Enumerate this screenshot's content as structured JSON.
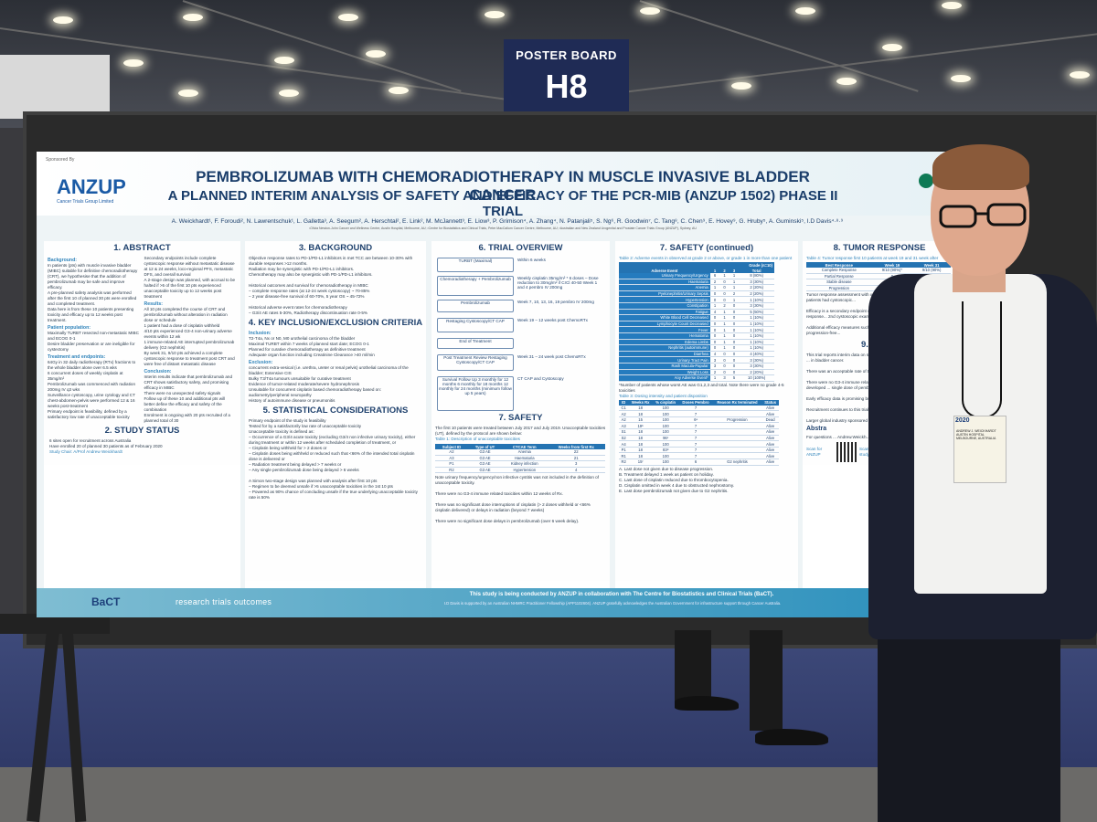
{
  "board": {
    "label": "POSTER BOARD",
    "number": "H8"
  },
  "poster": {
    "sponsor": "Sponsored By",
    "logo": "ANZUP",
    "logo_sub": "Cancer Trials Group Limited",
    "title_line1": "PEMBROLIZUMAB WITH CHEMORADIOTHERAPY IN MUSCLE INVASIVE BLADDER CANCER",
    "title_line2": "A PLANNED INTERIM ANALYSIS OF SAFETY AND EFFICACY OF THE PCR-MIB (ANZUP 1502) PHASE II TRIAL",
    "authors": "A. Weickhardt¹, F. Foroudi², N. Lawrentschuk¹, L. Galletta³, A. Seegum², A. Herschtal², E. Link², M. McJannett³, E. Liow³, P. Grimison⁴, A. Zhang⁴, N. Patanjali⁵, S. Ng⁶, R. Goodwin⁷, C. Tang⁸, C. Chen⁹, E. Hovey⁹, G. Hruby⁵, A. Guminski⁵, I.D Davis⁴·⁸·⁹",
    "affiliations": "¹Olivia Newton-John Cancer and Wellness Centre, Austin Hospital, Melbourne, AU; ²Centre for Biostatistics and Clinical Trials, Peter MacCallum Cancer Centre, Melbourne, AU; ³Australian and New Zealand Urogenital and Prostate Cancer Trials Group (ANZUP), Sydney, AU",
    "sections": {
      "abstract": {
        "heading": "1. ABSTRACT",
        "background_h": "Background:",
        "background": "In patients (pts) with muscle invasive bladder (MIBC) suitable for definitive chemoradiotherapy (CRT), we hypothesise that the addition of pembrolizumab may be safe and improve efficacy.\nA pre-planned safety analysis was performed after the first 10 of planned 30 pts were enrolled and completed treatment.\nData here is from these 10 patients presenting toxicity and efficacy up to 12 weeks post treatment.",
        "population_h": "Patient population:",
        "population": "Maximally TURBT resected non-metastatic MIBC and ECOG 0-1\nDesire bladder preservation or are ineligible for cystectomy",
        "treatment_h": "Treatment and endpoints:",
        "treatment": "64Gy in 32 daily radiotherapy (RTx) fractions to the whole bladder alone over 6.5 wks\n6 concurrent doses of weekly cisplatin at 35mg/m²\nPembrolizumab was commenced with radiation 200mg IV q3 wks\nSurveillance cystoscopy, urine cytology and CT chest-abdomen-pelvis were performed 12 & 16 weeks post-treatment\nPrimary endpoint is feasibility, defined by a satisfactory low rate of unacceptable toxicity",
        "secondary": "Secondary endpoints include complete cystoscopic response without metastatic disease at 12 & 24 weeks, loco-regional PFS, metastatic DFS, and overall survival\nA 2-stage design was planned, with accrual to be halted if >5 of the first 10 pts experienced unacceptable toxicity up to 12 weeks post treatment",
        "results_h": "Results:",
        "results": "All 10 pts completed the course of CRT and pembrolizumab without alteration in radiation dose or schedule\n1 patient had a dose of cisplatin withheld\n4/10 pts experienced G3-4 non-urinary adverse events within 12 wk\n1 immune-related AE interrupted pembrolizumab delivery (G2 nephritis)\nBy week 31, 9/10 pts achieved a complete cystoscopic response to treatment post CRT and were free of distant metastatic disease",
        "conclusion_h": "Conclusion:",
        "conclusion": "Interim results indicate that pembrolizumab and CRT shows satisfactory safety, and promising efficacy in MIBC\nThere were no unexpected safety signals\nFollow up of these 10 and additional pts will better define the efficacy and safety of the combination\nEnrolment is ongoing with 20 pts recruited of a planned total of 30"
      },
      "study_status": {
        "heading": "2. STUDY STATUS",
        "text": "6 sites open for recruitment across Australia\nHave enrolled 20 of planned 30 patients as of February 2020",
        "chair": "Study Chair: A/Prof Andrew Weickhardt"
      },
      "background": {
        "heading": "3. BACKGROUND",
        "text": "Objective response rates to PD-1/PD-L1 inhibitors in met TCC are between 10-30% with durable responses >12 months.\nRadiation may be synergistic with PD-1/PD-L1 inhibitors.\nChemotherapy may also be synergistic with PD-1/PD-L1 inhibitors.\n\nHistorical outcomes and survival for chemoradiotherapy in MIBC\n– complete response rates (at 12-24 week cystoscopy) ~ 70-85%\n– 2 year disease-free survival of 60-70%, 5 year OS ~ 45-72%\n\nHistorical adverse event rates for chemoradiotherapy\n– G3/4 AE rates 5-30%, Radiotherapy discontinuation rate 0-5%"
      },
      "inclusion": {
        "heading": "4. KEY INCLUSION/EXCLUSION CRITERIA",
        "inclusion_h": "Inclusion:",
        "inclusion": "T2-T4a, Nx or N0, M0 urothelial carcinoma of the bladder\nMaximal TURBT within 7 weeks of planned start date; ECOG 0-1\nPlanned for curative chemoradiotherapy as definitive treatment\nAdequate organ function including Creatinine Clearance >40 ml/min",
        "exclusion_h": "Exclusion:",
        "exclusion": "concurrent extra-vesical (i.e. urethra, ureter or renal pelvis) urothelial carcinoma of the bladder; Extensive CIS\nBulky T3/T4a tumours unsuitable for curative treatment\nEvidence of tumor-related moderate/severe hydronephrosis\nUnsuitable for concurrent cisplatin based chemoradiotherapy based on: audiometry/peripheral neuropathy\nHistory of autoimmune disease or pneumonitis"
      },
      "statistics": {
        "heading": "5. STATISTICAL CONSIDERATIONS",
        "text": "Primary endpoint of the study is feasibility\nTested for by a satisfactorily low rate of unacceptable toxicity\nUnacceptable toxicity is defined as:\n– Occurrence of a G3/4 acute toxicity (excluding G3/4 non infective urinary toxicity), either during treatment or within 12 weeks after scheduled completion of treatment, or\n– Cisplatin being withheld for > 2 doses or\n– Cisplatin doses being withheld or reduced such that <66% of the intended total cisplatin dose is delivered or\n– Radiation treatment being delayed > 7 weeks or\n– Any single pembrolizumab dose being delayed > 6 weeks\n\nA Simon two-stage design was planned with analysis after first 10 pts\n– Regimen to be deemed unsafe if >5 unacceptable toxicities in the 1st 10 pts\n– Powered as 90% chance of concluding unsafe if the true underlying unacceptable toxicity rate is 50%"
      },
      "trial_overview": {
        "heading": "6. TRIAL OVERVIEW",
        "steps": [
          {
            "box": "TURBT (Maximal)",
            "note": "Within 6 weeks"
          },
          {
            "box": "Chemoradiotherapy + Pembrolizumab",
            "note": "Weekly cisplatin 35mg/m² * 6 doses – Dose reduction to 30mg/m² if CrCl 40-50 Week 1 and 4 pembro IV 200mg"
          },
          {
            "box": "Pembrolizumab",
            "note": "Week 7, 10, 13, 16, 19 pembro IV 200mg"
          },
          {
            "box": "Restaging Cystoscopy/CT CAP",
            "note": "Week 19 – 12 weeks post ChemoRTx"
          },
          {
            "box": "End of Treatment",
            "note": ""
          },
          {
            "box": "Post Treatment Review Restaging Cystoscopy/CT CAP",
            "note": "Week 31 – 24 week post ChemoRTx"
          },
          {
            "box": "Survival Follow Up 3 monthly for 12 months 6 monthly for 18 months 12 monthly for 24 months (minimum follow up 5 years)",
            "note": "CT CAP and Cystoscopy"
          }
        ]
      },
      "safety": {
        "heading": "7. SAFETY",
        "text": "The first 10 patients were treated between July 2017 and July 2019. Unacceptable toxicities (UT), defined by the protocol are shown below:",
        "table_caption": "Table 1: Description of unacceptable toxicities",
        "columns": [
          "Subject ID",
          "Type of UT",
          "CTCAE Term",
          "Weeks from first Rx"
        ],
        "rows": [
          [
            "A2",
            "G3 AE",
            "Anemia",
            "22"
          ],
          [
            "A3",
            "G3 AE",
            "Haematuria",
            "21"
          ],
          [
            "P1",
            "G3 AE",
            "Kidney infection",
            "3"
          ],
          [
            "R2",
            "G3 AE",
            "Hypertension",
            "4"
          ]
        ],
        "notes": "Note urinary frequency/urgency/non infective cystitis was not included in the definition of unacceptable toxicity.\n\nThere were no G3-4 immune related toxicities within 12 weeks of Rx.\n\nThere was no significant dose interruptions of cisplatin (> 2 doses withheld or <66% cisplatin delivered) or delays in radiation (beyond 7 weeks)\n\nThere were no significant dose delays in pembrolizumab (over 6 week delay)."
      },
      "safety_cont": {
        "heading": "7. SAFETY (continued)",
        "table2_caption": "Table 2: Adverse events in observed at grade 2 or above, or grade 1 in more than one patient",
        "ae_columns": [
          "Adverse Event",
          "1",
          "2",
          "3",
          "Total"
        ],
        "ae_grade_header": "Grade (n=10)",
        "ae_rows": [
          [
            "Urinary Frequency/Urgency",
            "6",
            "1",
            "1",
            "8 (80%)"
          ],
          [
            "Haematuria",
            "2",
            "0",
            "1",
            "3 (30%)"
          ],
          [
            "Anemia",
            "1",
            "0",
            "1",
            "2 (20%)"
          ],
          [
            "Pyelonephritis/Urinary Sepsis",
            "0",
            "0",
            "2",
            "2 (20%)"
          ],
          [
            "Hypertension",
            "0",
            "0",
            "1",
            "1 (10%)"
          ],
          [
            "Constipation",
            "1",
            "2",
            "0",
            "3 (30%)"
          ],
          [
            "Fatigue",
            "4",
            "1",
            "0",
            "5 (50%)"
          ],
          [
            "White Blood Cell Decreased",
            "0",
            "1",
            "0",
            "1 (10%)"
          ],
          [
            "Lymphocyte Count Decreased",
            "0",
            "1",
            "0",
            "1 (10%)"
          ],
          [
            "Fever",
            "0",
            "1",
            "0",
            "1 (10%)"
          ],
          [
            "Hematoma",
            "0",
            "1",
            "0",
            "1 (10%)"
          ],
          [
            "Edema Limbs",
            "0",
            "1",
            "0",
            "1 (10%)"
          ],
          [
            "Nephritis (autoimmune)",
            "0",
            "1",
            "0",
            "1 (10%)"
          ],
          [
            "Diarrhea",
            "4",
            "0",
            "0",
            "4 (40%)"
          ],
          [
            "Urinary Tract Pain",
            "3",
            "0",
            "0",
            "3 (30%)"
          ],
          [
            "Rash Macula-Papular",
            "3",
            "0",
            "0",
            "3 (30%)"
          ],
          [
            "Weight Loss",
            "2",
            "0",
            "0",
            "2 (20%)"
          ],
          [
            "Any Adverse Event*",
            "1",
            "3",
            "5",
            "10 (100%)"
          ]
        ],
        "ae_note": "*Number of patients whose worst AE was G1,2,3 and total. Note there were no grade 4-5 toxicities",
        "table3_caption": "Table 3: Dosing intensity and patient disposition",
        "dose_columns": [
          "ID",
          "Weeks Rx",
          "% cisplatin",
          "Doses Pembro",
          "Reason Rx terminated",
          "Status"
        ],
        "dose_rows": [
          [
            "C1",
            "18",
            "100",
            "7",
            "",
            "Alive"
          ],
          [
            "A2",
            "18",
            "100",
            "7",
            "",
            "Alive"
          ],
          [
            "A2",
            "15",
            "100",
            "6ᵃ",
            "Progression",
            "Dead"
          ],
          [
            "A3",
            "19ᵇ",
            "100",
            "7",
            "",
            "Alive"
          ],
          [
            "S1",
            "18",
            "100",
            "7",
            "",
            "Alive"
          ],
          [
            "S2",
            "18",
            "96ᶜ",
            "7",
            "",
            "Alive"
          ],
          [
            "A4",
            "18",
            "100",
            "7",
            "",
            "Alive"
          ],
          [
            "P1",
            "18",
            "83ᵈ",
            "7",
            "",
            "Alive"
          ],
          [
            "R1",
            "18",
            "100",
            "7",
            "",
            "Alive"
          ],
          [
            "R2",
            "15ᶠ",
            "100",
            "6",
            "G2 nephritis",
            "Alive"
          ]
        ],
        "dose_notes": "A. Last dose not given due to disease progression.\nB. Treatment delayed 1 week as patient on holiday.\nC. Last dose of cisplatin reduced due to thrombocytopenia.\nD. Cisplatin omitted in week 4 due to obstructed nephrostomy.\nE. Last dose pembrolizumab not given due to G2 nephritis."
      },
      "tumor": {
        "heading": "8. TUMOR RESPONSE",
        "table4_caption": "Table 4: Tumor response first 10 patients at week 19 and 31 week after",
        "columns": [
          "Best Response",
          "Week 19",
          "Week 31"
        ],
        "rows": [
          [
            "Complete Response",
            "9/10 (90%)*",
            "9/10 (90%)"
          ],
          [
            "Partial Response",
            "0",
            "0"
          ],
          [
            "Stable disease",
            "0",
            "0"
          ],
          [
            "Progression",
            "1/10 (10%)",
            ""
          ]
        ],
        "text": "Tumor response assessment with urine cytology at week 19 and 31. *Three patients had cystoscopic...\n\nEfficacy is a secondary endpoint of study... patients achieving a complete response... 2nd cystoscopic examination after...\n\nAdditional efficacy measures such as overall survival and locoregional progression-free..."
      },
      "discussion": {
        "heading": "9. DISCU",
        "text": "This trial reports interim data on safety of a planned 30 patient phase II trial of ... in bladder cancer.\n\nThere was an acceptable rate of toxicity ... analysis.\n\nThere were no G3-4 immune related... treatment. One patient out of 10 developed ... single dose of pembrolizumab\n\nEarly efficacy data is promising but ...\n\nRecruitment continues to this trial ... as of February 2020.\n\nLarger global industry sponsored rando...",
        "abstract_h": "Abstra",
        "abstract_text": "For questions ... Andrew.Weickh...",
        "scan": "Scan for ANZUP",
        "scan2": "Scan to ... the study webpage"
      }
    },
    "footer": {
      "main": "This study is being conducted by ANZUP in collaboration with The Centre for Biostatistics and Clinical Trials (BaCT).",
      "sub": "I.D Davis is supported by an Australian NHMRC Practitioner Fellowship (APP1102604). ANZUP gratefully acknowledges the Australian Government for infrastructure support through Cancer Australia.",
      "bact": "BaCT",
      "tagline": "research   trials   outcomes"
    }
  },
  "badge": {
    "year": "2020",
    "name": "ANDREW J. WEICKHARDT AUSTIN HOSPITAL MELBOURNE, AUSTRALIA"
  }
}
